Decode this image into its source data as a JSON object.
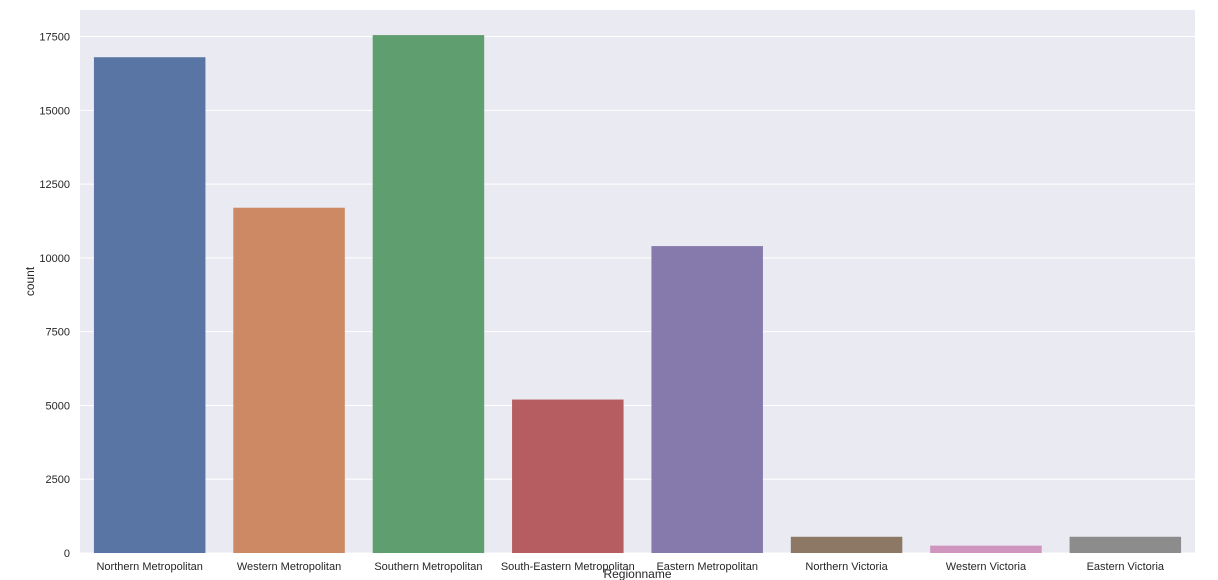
{
  "chart_data": {
    "type": "bar",
    "categories": [
      "Northern Metropolitan",
      "Western Metropolitan",
      "Southern Metropolitan",
      "South-Eastern Metropolitan",
      "Eastern Metropolitan",
      "Northern Victoria",
      "Western Victoria",
      "Eastern Victoria"
    ],
    "values": [
      16800,
      11700,
      17550,
      5200,
      10400,
      550,
      250,
      550
    ],
    "colors": [
      "#5875a4",
      "#cc8963",
      "#5f9e6e",
      "#b55d60",
      "#857aab",
      "#8d7866",
      "#d095bf",
      "#8c8c8c"
    ],
    "title": "",
    "xlabel": "Regionname",
    "ylabel": "count",
    "ylim": [
      0,
      18400
    ],
    "yticks": [
      0,
      2500,
      5000,
      7500,
      10000,
      12500,
      15000,
      17500
    ],
    "ytick_labels": [
      "0",
      "2500",
      "5000",
      "7500",
      "10000",
      "12500",
      "15000",
      "17500"
    ],
    "grid": true,
    "background": "#eaeaf2",
    "grid_color": "#ffffff"
  }
}
